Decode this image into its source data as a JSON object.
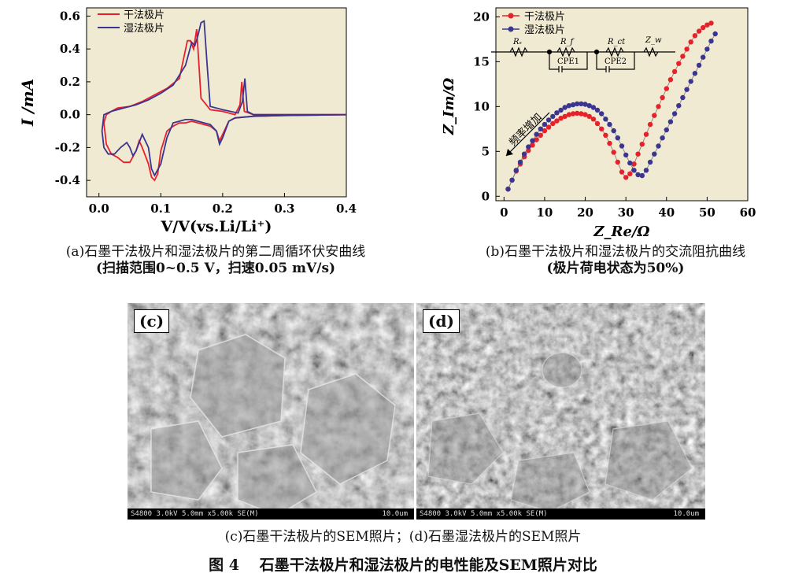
{
  "chart_data": [
    {
      "type": "line",
      "panel": "a",
      "xlabel": "V/V(vs.Li/Li⁺)",
      "ylabel": "I /mA",
      "xlim": [
        -0.02,
        0.4
      ],
      "ylim": [
        -0.5,
        0.65
      ],
      "xticks": [
        "0.0",
        "0.1",
        "0.2",
        "0.3",
        "0.4"
      ],
      "yticks": [
        "0.6",
        "0.4",
        "0.2",
        "0.0",
        "-0.2",
        "-0.4"
      ],
      "xtick_values": [
        0,
        0.1,
        0.2,
        0.3,
        0.4
      ],
      "ytick_values": [
        0.6,
        0.4,
        0.2,
        0,
        -0.2,
        -0.4
      ],
      "legend_position": "top-left",
      "series": [
        {
          "name": "干法极片",
          "color": "#e8202a",
          "x": [
            0.4,
            0.3,
            0.25,
            0.235,
            0.231,
            0.228,
            0.22,
            0.2,
            0.18,
            0.165,
            0.158,
            0.153,
            0.148,
            0.143,
            0.138,
            0.13,
            0.11,
            0.09,
            0.07,
            0.05,
            0.03,
            0.02,
            0.012,
            0.008,
            0.012,
            0.02,
            0.03,
            0.04,
            0.05,
            0.06,
            0.065,
            0.07,
            0.08,
            0.085,
            0.09,
            0.095,
            0.1,
            0.11,
            0.12,
            0.13,
            0.14,
            0.15,
            0.16,
            0.17,
            0.18,
            0.19,
            0.195,
            0.2,
            0.21,
            0.22,
            0.25,
            0.3,
            0.4
          ],
          "y": [
            0.0,
            0.0,
            0.0,
            0.02,
            0.2,
            0.06,
            0.0,
            0.02,
            0.03,
            0.1,
            0.52,
            0.4,
            0.45,
            0.45,
            0.36,
            0.22,
            0.16,
            0.12,
            0.08,
            0.05,
            0.04,
            0.02,
            0.0,
            -0.05,
            -0.18,
            -0.24,
            -0.26,
            -0.29,
            -0.29,
            -0.22,
            -0.16,
            -0.2,
            -0.3,
            -0.38,
            -0.4,
            -0.36,
            -0.22,
            -0.1,
            -0.07,
            -0.05,
            -0.05,
            -0.04,
            -0.05,
            -0.06,
            -0.07,
            -0.1,
            -0.16,
            -0.12,
            -0.04,
            -0.02,
            -0.01,
            -0.005,
            0.0
          ]
        },
        {
          "name": "湿法极片",
          "color": "#3a3590",
          "x": [
            0.4,
            0.3,
            0.25,
            0.24,
            0.236,
            0.232,
            0.225,
            0.2,
            0.18,
            0.175,
            0.17,
            0.165,
            0.16,
            0.155,
            0.15,
            0.14,
            0.12,
            0.1,
            0.08,
            0.06,
            0.04,
            0.02,
            0.008,
            0.005,
            0.008,
            0.015,
            0.025,
            0.035,
            0.045,
            0.05,
            0.055,
            0.06,
            0.07,
            0.08,
            0.085,
            0.09,
            0.1,
            0.11,
            0.12,
            0.13,
            0.14,
            0.15,
            0.16,
            0.17,
            0.18,
            0.19,
            0.195,
            0.2,
            0.21,
            0.22,
            0.25,
            0.3,
            0.4
          ],
          "y": [
            0.0,
            0.0,
            0.0,
            0.02,
            0.22,
            0.08,
            0.01,
            0.03,
            0.05,
            0.3,
            0.57,
            0.56,
            0.48,
            0.42,
            0.44,
            0.3,
            0.18,
            0.13,
            0.09,
            0.06,
            0.04,
            0.02,
            0.0,
            -0.1,
            -0.2,
            -0.24,
            -0.24,
            -0.2,
            -0.17,
            -0.2,
            -0.25,
            -0.22,
            -0.12,
            -0.2,
            -0.33,
            -0.37,
            -0.3,
            -0.14,
            -0.05,
            -0.04,
            -0.03,
            -0.03,
            -0.04,
            -0.05,
            -0.06,
            -0.1,
            -0.18,
            -0.14,
            -0.04,
            -0.02,
            -0.01,
            -0.005,
            0.0
          ]
        }
      ]
    },
    {
      "type": "scatter",
      "panel": "b",
      "xlabel": "Z_Re/Ω",
      "ylabel": "Z_Im/Ω",
      "xlim": [
        -2,
        60
      ],
      "ylim": [
        -0.5,
        21
      ],
      "xticks": [
        "0",
        "10",
        "20",
        "30",
        "40",
        "50",
        "60"
      ],
      "yticks": [
        "0",
        "5",
        "10",
        "15",
        "20"
      ],
      "xtick_values": [
        0,
        10,
        20,
        30,
        40,
        50,
        60
      ],
      "ytick_values": [
        0,
        5,
        10,
        15,
        20
      ],
      "legend_position": "top-left",
      "annotation": "频率增加",
      "circuit_labels": [
        "Rₛ",
        "R_f",
        "CPE1",
        "R_ct",
        "CPE2",
        "Z_w"
      ],
      "series": [
        {
          "name": "干法极片",
          "color": "#e8202a",
          "x": [
            1,
            2,
            3,
            4,
            5,
            6,
            7,
            8,
            9,
            10,
            11,
            12,
            13,
            14,
            15,
            16,
            17,
            18,
            19,
            20,
            21,
            22,
            23,
            24,
            25,
            26,
            27,
            28,
            29,
            30,
            31,
            32,
            33,
            34,
            35,
            36,
            37,
            38,
            39,
            40,
            41,
            42,
            43,
            44,
            45,
            46,
            47,
            48,
            49,
            50,
            51
          ],
          "y": [
            0.8,
            1.8,
            2.8,
            3.6,
            4.4,
            5.1,
            5.7,
            6.3,
            6.8,
            7.3,
            7.7,
            8.1,
            8.4,
            8.7,
            8.9,
            9.1,
            9.2,
            9.25,
            9.2,
            9.1,
            8.9,
            8.6,
            8.1,
            7.5,
            6.8,
            5.9,
            4.9,
            3.8,
            2.7,
            2.1,
            2.5,
            3.6,
            4.7,
            5.8,
            6.9,
            8.0,
            9.0,
            10.0,
            11.0,
            12.0,
            13.0,
            13.9,
            14.8,
            15.6,
            16.4,
            17.2,
            17.9,
            18.4,
            18.8,
            19.1,
            19.3
          ]
        },
        {
          "name": "湿法极片",
          "color": "#3a3590",
          "x": [
            1,
            2,
            3,
            4,
            5,
            6,
            7,
            8,
            9,
            10,
            11,
            12,
            13,
            14,
            15,
            16,
            17,
            18,
            19,
            20,
            21,
            22,
            23,
            24,
            25,
            26,
            27,
            28,
            29,
            30,
            31,
            32,
            33,
            34,
            35,
            36,
            37,
            38,
            39,
            40,
            41,
            42,
            43,
            44,
            45,
            46,
            47,
            48,
            49,
            50,
            51,
            52
          ],
          "y": [
            0.8,
            1.8,
            2.9,
            3.8,
            4.7,
            5.5,
            6.2,
            6.9,
            7.5,
            8.0,
            8.5,
            8.9,
            9.3,
            9.6,
            9.9,
            10.1,
            10.2,
            10.3,
            10.3,
            10.25,
            10.1,
            9.9,
            9.6,
            9.2,
            8.6,
            8.0,
            7.3,
            6.5,
            5.6,
            4.6,
            3.7,
            2.9,
            2.4,
            2.3,
            2.9,
            3.8,
            4.7,
            5.6,
            6.5,
            7.4,
            8.3,
            9.2,
            10.1,
            11.0,
            11.9,
            12.8,
            13.7,
            14.6,
            15.5,
            16.4,
            17.3,
            18.1
          ]
        }
      ]
    }
  ],
  "captions": {
    "a_line1": "(a)石墨干法极片和湿法极片的第二周循环伏安曲线",
    "a_line2": "(扫描范围0~0.5 V，扫速0.05 mV/s)",
    "b_line1": "(b)石墨干法极片和湿法极片的交流阻抗曲线",
    "b_line2": "(极片荷电状态为50%)",
    "cd": "(c)石墨干法极片的SEM照片；(d)石墨湿法极片的SEM照片",
    "figure": "图 4　 石墨干法极片和湿法极片的电性能及SEM照片对比"
  },
  "sem": [
    {
      "tag": "(c)",
      "info": "S4800 3.0kV 5.0mm x5.00k SE(M)",
      "scale": "10.0um"
    },
    {
      "tag": "(d)",
      "info": "S4800 3.0kV 5.0mm x5.00k SE(M)",
      "scale": "10.0um"
    }
  ]
}
